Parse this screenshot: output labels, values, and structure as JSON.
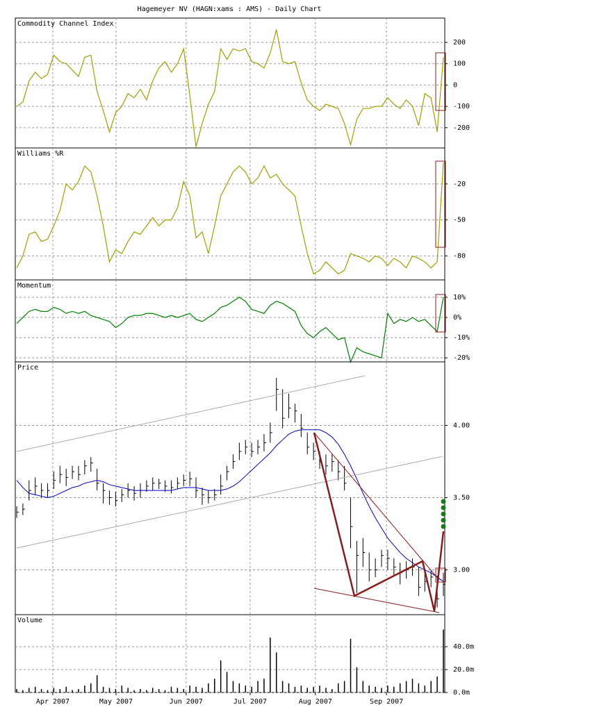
{
  "title": "Hagemeyer NV (HAGN:xams : AMS) - Daily Chart",
  "chart_data": [
    {
      "type": "line",
      "title": "Commodity Channel Index",
      "ylim": [
        -295,
        314
      ],
      "yticks": [
        200,
        100,
        0,
        -100,
        -200
      ],
      "series": [
        {
          "name": "CCI",
          "color": "#a0a000",
          "values": [
            -100,
            -80,
            20,
            60,
            30,
            50,
            140,
            110,
            100,
            70,
            40,
            130,
            140,
            -30,
            -120,
            -220,
            -130,
            -100,
            -40,
            -60,
            -20,
            -70,
            20,
            80,
            110,
            60,
            100,
            170,
            -50,
            -290,
            -180,
            -90,
            -30,
            170,
            120,
            170,
            160,
            170,
            110,
            100,
            80,
            150,
            260,
            110,
            100,
            110,
            10,
            -70,
            -100,
            -120,
            -90,
            -100,
            -110,
            -180,
            -280,
            -160,
            -110,
            -110,
            -100,
            -100,
            -60,
            -90,
            -110,
            -70,
            -100,
            -190,
            -40,
            -60,
            -220,
            130
          ]
        }
      ]
    },
    {
      "type": "line",
      "title": "Williams %R",
      "ylim": [
        -100,
        10
      ],
      "yticks": [
        -20,
        -50,
        -80
      ],
      "series": [
        {
          "name": "Williams %R",
          "color": "#a0a000",
          "values": [
            -90,
            -80,
            -62,
            -60,
            -68,
            -66,
            -55,
            -42,
            -20,
            -25,
            -18,
            -5,
            -10,
            -30,
            -55,
            -85,
            -75,
            -78,
            -68,
            -60,
            -62,
            -55,
            -48,
            -55,
            -50,
            -50,
            -40,
            -18,
            -30,
            -65,
            -60,
            -78,
            -55,
            -30,
            -20,
            -10,
            -5,
            -10,
            -20,
            -15,
            -5,
            -15,
            -12,
            -20,
            -25,
            -30,
            -55,
            -78,
            -95,
            -92,
            -85,
            -90,
            -95,
            -92,
            -78,
            -80,
            -82,
            -85,
            -80,
            -82,
            -88,
            -82,
            -85,
            -90,
            -80,
            -82,
            -85,
            -90,
            -85,
            -2
          ]
        }
      ]
    },
    {
      "type": "line",
      "title": "Momentum",
      "ylim": [
        -22,
        18.6
      ],
      "yticks": [
        {
          "value": 10,
          "label": "10%"
        },
        {
          "value": 0,
          "label": "0%"
        },
        {
          "value": -10,
          "label": "-10%"
        },
        {
          "value": -20,
          "label": "-20%"
        }
      ],
      "series": [
        {
          "name": "Momentum",
          "color": "#008000",
          "values": [
            -3,
            0,
            3,
            4,
            3,
            3,
            5,
            4,
            2,
            3,
            2,
            3,
            1,
            0,
            -1,
            -2,
            -5,
            -3,
            0,
            1,
            1,
            2,
            2,
            1,
            0,
            1,
            0,
            1,
            2,
            -1,
            -2,
            0,
            2,
            5,
            6,
            8,
            10,
            8,
            4,
            3,
            2,
            6,
            8,
            7,
            5,
            3,
            -4,
            -8,
            -10,
            -7,
            -5,
            -8,
            -11,
            -10,
            -22,
            -15,
            -17,
            -18,
            -19,
            -20,
            2,
            -3,
            -1,
            -2,
            0,
            -2,
            -1,
            -4,
            -7,
            10
          ]
        }
      ]
    },
    {
      "type": "hlc",
      "title": "Price",
      "ylim": [
        2.69,
        4.44
      ],
      "yticks": [
        {
          "value": 4,
          "label": "4.00"
        },
        {
          "value": 3.5,
          "label": "3.50"
        },
        {
          "value": 3,
          "label": "3.00"
        }
      ],
      "color": "#000000",
      "ma_color": "#0000cc",
      "high": [
        3.44,
        3.46,
        3.62,
        3.64,
        3.6,
        3.6,
        3.68,
        3.72,
        3.7,
        3.72,
        3.72,
        3.76,
        3.78,
        3.7,
        3.6,
        3.55,
        3.54,
        3.56,
        3.6,
        3.58,
        3.6,
        3.62,
        3.64,
        3.63,
        3.62,
        3.62,
        3.64,
        3.66,
        3.68,
        3.64,
        3.57,
        3.55,
        3.56,
        3.66,
        3.72,
        3.8,
        3.88,
        3.9,
        3.88,
        3.9,
        3.94,
        4.02,
        4.33,
        4.25,
        4.22,
        4.15,
        4.08,
        3.95,
        3.88,
        3.82,
        3.8,
        3.8,
        3.76,
        3.72,
        3.5,
        3.2,
        3.22,
        3.12,
        3.08,
        3.14,
        3.14,
        3.08,
        3.05,
        3.06,
        3.08,
        3.02,
        3.0,
        3.0,
        2.96,
        2.98
      ],
      "low": [
        3.36,
        3.38,
        3.48,
        3.52,
        3.5,
        3.5,
        3.56,
        3.6,
        3.58,
        3.63,
        3.62,
        3.66,
        3.68,
        3.55,
        3.46,
        3.45,
        3.44,
        3.47,
        3.5,
        3.48,
        3.5,
        3.54,
        3.55,
        3.56,
        3.54,
        3.53,
        3.56,
        3.58,
        3.58,
        3.5,
        3.45,
        3.46,
        3.48,
        3.52,
        3.62,
        3.7,
        3.76,
        3.8,
        3.78,
        3.8,
        3.82,
        3.88,
        4.1,
        3.98,
        4.05,
        4.02,
        3.92,
        3.8,
        3.76,
        3.7,
        3.66,
        3.68,
        3.62,
        3.55,
        3.15,
        2.84,
        3.02,
        2.92,
        2.95,
        3.02,
        3.0,
        2.96,
        2.9,
        2.94,
        2.96,
        2.82,
        2.85,
        2.88,
        2.74,
        2.82
      ],
      "close": [
        3.4,
        3.42,
        3.55,
        3.58,
        3.55,
        3.55,
        3.62,
        3.66,
        3.64,
        3.68,
        3.66,
        3.72,
        3.74,
        3.6,
        3.55,
        3.5,
        3.48,
        3.52,
        3.55,
        3.53,
        3.55,
        3.58,
        3.6,
        3.6,
        3.58,
        3.57,
        3.6,
        3.62,
        3.63,
        3.55,
        3.52,
        3.5,
        3.52,
        3.58,
        3.68,
        3.75,
        3.82,
        3.85,
        3.82,
        3.85,
        3.88,
        3.95,
        4.25,
        4.05,
        4.12,
        4.1,
        3.98,
        3.85,
        3.82,
        3.75,
        3.72,
        3.75,
        3.68,
        3.6,
        3.3,
        3.1,
        3.12,
        3.0,
        3.0,
        3.1,
        3.08,
        3.02,
        2.98,
        3.0,
        3.02,
        2.88,
        2.92,
        2.95,
        2.8,
        2.9
      ],
      "moving_average": [
        3.62,
        3.57,
        3.53,
        3.52,
        3.51,
        3.5,
        3.51,
        3.53,
        3.55,
        3.57,
        3.58,
        3.6,
        3.61,
        3.62,
        3.61,
        3.59,
        3.58,
        3.57,
        3.56,
        3.55,
        3.55,
        3.55,
        3.55,
        3.55,
        3.55,
        3.55,
        3.56,
        3.57,
        3.57,
        3.57,
        3.56,
        3.55,
        3.55,
        3.55,
        3.56,
        3.58,
        3.61,
        3.65,
        3.69,
        3.73,
        3.77,
        3.81,
        3.86,
        3.9,
        3.94,
        3.96,
        3.97,
        3.97,
        3.97,
        3.97,
        3.95,
        3.92,
        3.87,
        3.8,
        3.72,
        3.63,
        3.53,
        3.44,
        3.36,
        3.29,
        3.22,
        3.17,
        3.12,
        3.08,
        3.05,
        3.02,
        3.0,
        2.98,
        2.95,
        2.92
      ]
    },
    {
      "type": "bar",
      "title": "Volume",
      "ylim": [
        0,
        68
      ],
      "yticks": [
        {
          "value": 40,
          "label": "40.0m"
        },
        {
          "value": 20,
          "label": "20.0m"
        },
        {
          "value": 0,
          "label": "0.0m"
        }
      ],
      "color": "#000000",
      "values": [
        3,
        2,
        4,
        5,
        3,
        2,
        4,
        3,
        5,
        2,
        3,
        6,
        8,
        15,
        5,
        4,
        3,
        6,
        4,
        2,
        3,
        2,
        4,
        3,
        2,
        5,
        4,
        3,
        6,
        5,
        4,
        8,
        12,
        28,
        18,
        10,
        8,
        6,
        5,
        10,
        12,
        48,
        35,
        10,
        8,
        5,
        6,
        4,
        5,
        6,
        4,
        3,
        8,
        10,
        47,
        22,
        10,
        6,
        5,
        4,
        6,
        5,
        8,
        10,
        12,
        8,
        6,
        10,
        14,
        55
      ],
      "xlim": [
        0,
        69
      ],
      "xticks": [
        {
          "value": 5.84,
          "label": "Apr 2007"
        },
        {
          "value": 16.07,
          "label": "May 2007"
        },
        {
          "value": 27.4,
          "label": "Jun 2007"
        },
        {
          "value": 37.75,
          "label": "Jul 2007"
        },
        {
          "value": 48.3,
          "label": "Aug 2007"
        },
        {
          "value": 59.8,
          "label": "Sep 2007"
        }
      ]
    }
  ]
}
